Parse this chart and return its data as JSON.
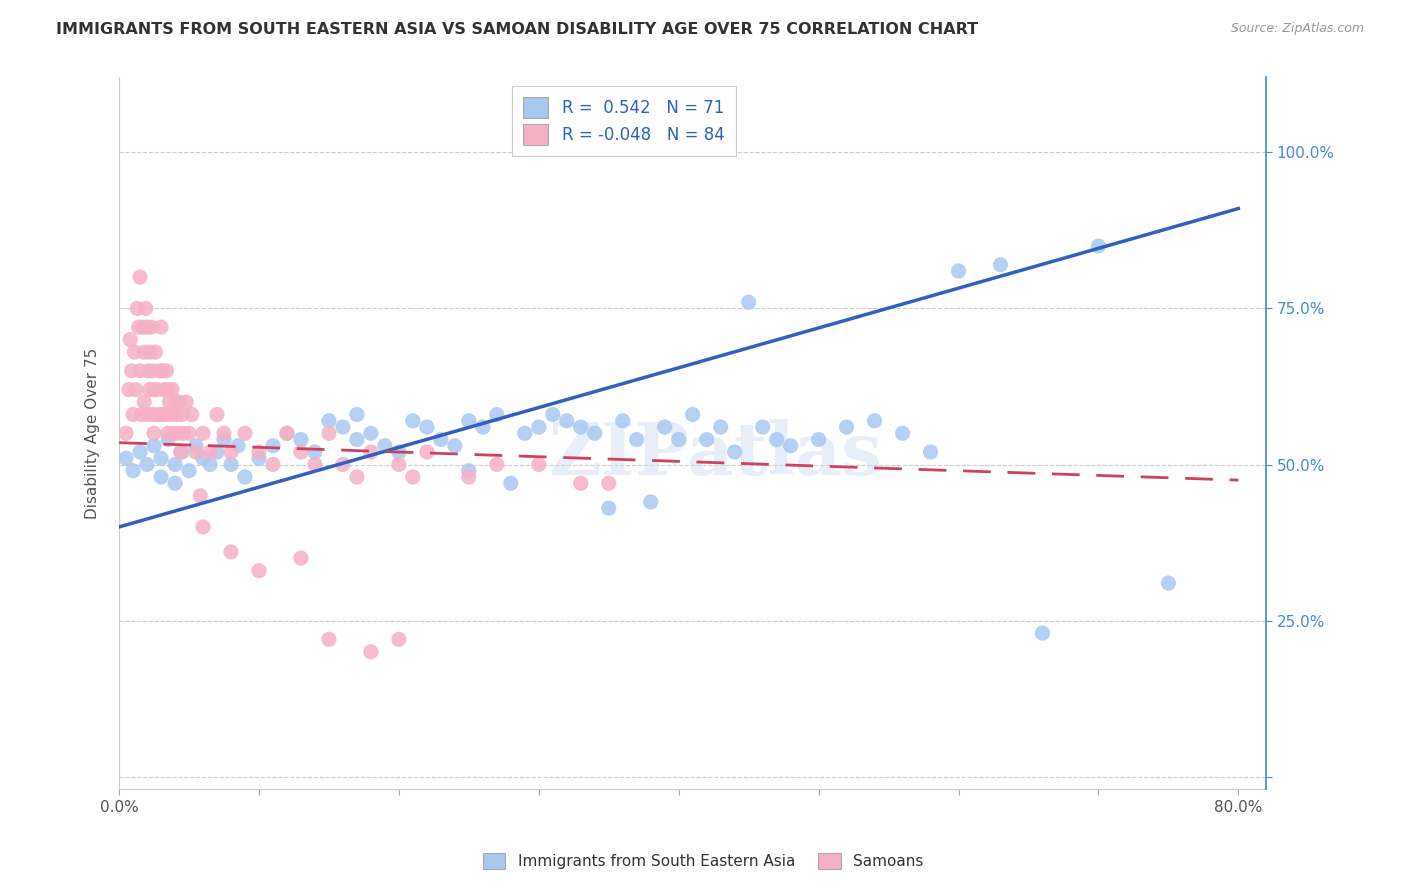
{
  "title": "IMMIGRANTS FROM SOUTH EASTERN ASIA VS SAMOAN DISABILITY AGE OVER 75 CORRELATION CHART",
  "source": "Source: ZipAtlas.com",
  "ylabel": "Disability Age Over 75",
  "xlim": [
    0.0,
    0.82
  ],
  "ylim": [
    -0.02,
    1.12
  ],
  "blue_R": 0.542,
  "blue_N": 71,
  "pink_R": -0.048,
  "pink_N": 84,
  "blue_color": "#a8c8f0",
  "pink_color": "#f5b0c5",
  "blue_line_color": "#3060c0",
  "pink_line_color": "#d04060",
  "right_axis_color": "#4488dd",
  "watermark": "ZIPatlas",
  "blue_scatter_x": [
    0.005,
    0.01,
    0.015,
    0.02,
    0.025,
    0.03,
    0.03,
    0.035,
    0.04,
    0.04,
    0.045,
    0.05,
    0.055,
    0.06,
    0.065,
    0.07,
    0.075,
    0.08,
    0.085,
    0.09,
    0.1,
    0.11,
    0.12,
    0.13,
    0.14,
    0.15,
    0.16,
    0.17,
    0.17,
    0.18,
    0.19,
    0.2,
    0.21,
    0.22,
    0.23,
    0.24,
    0.25,
    0.25,
    0.26,
    0.27,
    0.28,
    0.29,
    0.3,
    0.31,
    0.32,
    0.33,
    0.34,
    0.35,
    0.36,
    0.37,
    0.38,
    0.39,
    0.4,
    0.41,
    0.42,
    0.43,
    0.44,
    0.45,
    0.46,
    0.47,
    0.48,
    0.5,
    0.52,
    0.54,
    0.56,
    0.58,
    0.6,
    0.63,
    0.66,
    0.7,
    0.75
  ],
  "blue_scatter_y": [
    0.51,
    0.49,
    0.52,
    0.5,
    0.53,
    0.51,
    0.48,
    0.54,
    0.5,
    0.47,
    0.52,
    0.49,
    0.53,
    0.51,
    0.5,
    0.52,
    0.54,
    0.5,
    0.53,
    0.48,
    0.51,
    0.53,
    0.55,
    0.54,
    0.52,
    0.57,
    0.56,
    0.54,
    0.58,
    0.55,
    0.53,
    0.52,
    0.57,
    0.56,
    0.54,
    0.53,
    0.57,
    0.49,
    0.56,
    0.58,
    0.47,
    0.55,
    0.56,
    0.58,
    0.57,
    0.56,
    0.55,
    0.43,
    0.57,
    0.54,
    0.44,
    0.56,
    0.54,
    0.58,
    0.54,
    0.56,
    0.52,
    0.76,
    0.56,
    0.54,
    0.53,
    0.54,
    0.56,
    0.57,
    0.55,
    0.52,
    0.81,
    0.82,
    0.23,
    0.85,
    0.31
  ],
  "pink_scatter_x": [
    0.005,
    0.007,
    0.008,
    0.009,
    0.01,
    0.011,
    0.012,
    0.013,
    0.014,
    0.015,
    0.015,
    0.016,
    0.017,
    0.018,
    0.018,
    0.019,
    0.02,
    0.02,
    0.021,
    0.022,
    0.022,
    0.023,
    0.024,
    0.024,
    0.025,
    0.025,
    0.026,
    0.027,
    0.028,
    0.029,
    0.03,
    0.03,
    0.031,
    0.032,
    0.033,
    0.034,
    0.035,
    0.035,
    0.036,
    0.037,
    0.038,
    0.039,
    0.04,
    0.041,
    0.042,
    0.043,
    0.044,
    0.045,
    0.046,
    0.048,
    0.05,
    0.052,
    0.055,
    0.058,
    0.06,
    0.065,
    0.07,
    0.075,
    0.08,
    0.09,
    0.1,
    0.11,
    0.12,
    0.13,
    0.14,
    0.15,
    0.16,
    0.17,
    0.18,
    0.2,
    0.21,
    0.22,
    0.25,
    0.27,
    0.3,
    0.33,
    0.06,
    0.08,
    0.1,
    0.13,
    0.15,
    0.18,
    0.2,
    0.35
  ],
  "pink_scatter_y": [
    0.55,
    0.62,
    0.7,
    0.65,
    0.58,
    0.68,
    0.62,
    0.75,
    0.72,
    0.65,
    0.8,
    0.58,
    0.72,
    0.68,
    0.6,
    0.75,
    0.72,
    0.58,
    0.65,
    0.68,
    0.62,
    0.72,
    0.65,
    0.58,
    0.62,
    0.55,
    0.68,
    0.62,
    0.58,
    0.65,
    0.72,
    0.58,
    0.65,
    0.62,
    0.58,
    0.65,
    0.62,
    0.55,
    0.6,
    0.58,
    0.62,
    0.55,
    0.6,
    0.58,
    0.55,
    0.6,
    0.52,
    0.58,
    0.55,
    0.6,
    0.55,
    0.58,
    0.52,
    0.45,
    0.55,
    0.52,
    0.58,
    0.55,
    0.52,
    0.55,
    0.52,
    0.5,
    0.55,
    0.52,
    0.5,
    0.55,
    0.5,
    0.48,
    0.52,
    0.5,
    0.48,
    0.52,
    0.48,
    0.5,
    0.5,
    0.47,
    0.4,
    0.36,
    0.33,
    0.35,
    0.22,
    0.2,
    0.22,
    0.47
  ],
  "blue_line_x0": 0.0,
  "blue_line_y0": 0.4,
  "blue_line_x1": 0.8,
  "blue_line_y1": 0.91,
  "pink_line_x0": 0.0,
  "pink_line_y0": 0.535,
  "pink_line_x1": 0.8,
  "pink_line_y1": 0.475
}
